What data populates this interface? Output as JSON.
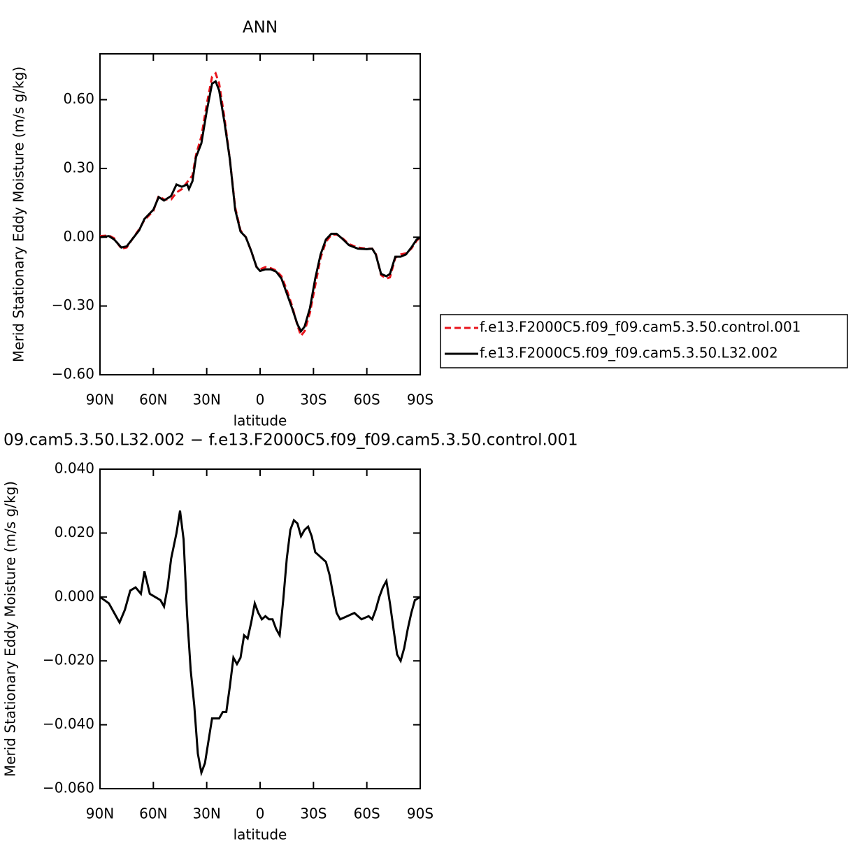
{
  "chart_data": [
    {
      "type": "line",
      "title": "ANN",
      "x_label": "latitude",
      "y_label": "Merid Stationary Eddy Moisture (m/s g/kg)",
      "x": [
        90,
        85,
        82,
        78,
        75,
        72,
        68,
        65,
        60,
        57,
        54,
        50,
        47,
        44,
        41,
        40,
        38,
        36,
        33,
        30,
        27,
        25,
        23,
        20,
        17,
        14,
        11,
        8,
        5,
        2,
        0,
        -3,
        -6,
        -9,
        -12,
        -15,
        -18,
        -21,
        -23,
        -25,
        -28,
        -31,
        -34,
        -37,
        -40,
        -43,
        -46,
        -50,
        -55,
        -60,
        -63,
        -65,
        -68,
        -71,
        -73,
        -76,
        -79,
        -82,
        -85,
        -88,
        -90
      ],
      "series": [
        {
          "name": "f.e13.F2000C5.f09_f09.cam5.3.50.control.001",
          "color": "#e8141c",
          "style": "dashed",
          "values": [
            0.005,
            0.008,
            -0.005,
            -0.05,
            -0.045,
            -0.01,
            0.035,
            0.075,
            0.115,
            0.18,
            0.165,
            0.165,
            0.195,
            0.21,
            0.24,
            0.25,
            0.27,
            0.36,
            0.44,
            0.58,
            0.7,
            0.715,
            0.67,
            0.52,
            0.34,
            0.13,
            0.03,
            0.0,
            -0.06,
            -0.13,
            -0.14,
            -0.13,
            -0.135,
            -0.145,
            -0.17,
            -0.23,
            -0.3,
            -0.385,
            -0.43,
            -0.41,
            -0.33,
            -0.21,
            -0.09,
            -0.02,
            0.01,
            0.012,
            -0.002,
            -0.03,
            -0.045,
            -0.05,
            -0.05,
            -0.07,
            -0.165,
            -0.18,
            -0.175,
            -0.09,
            -0.075,
            -0.07,
            -0.05,
            -0.015,
            0.0
          ]
        },
        {
          "name": "f.e13.F2000C5.f09_f09.cam5.3.50.L32.002",
          "color": "#000000",
          "style": "solid",
          "values": [
            0.0,
            0.005,
            -0.01,
            -0.045,
            -0.04,
            -0.01,
            0.03,
            0.08,
            0.12,
            0.175,
            0.16,
            0.18,
            0.23,
            0.22,
            0.23,
            0.21,
            0.245,
            0.35,
            0.41,
            0.55,
            0.67,
            0.68,
            0.64,
            0.5,
            0.34,
            0.12,
            0.025,
            0.0,
            -0.06,
            -0.13,
            -0.147,
            -0.14,
            -0.14,
            -0.15,
            -0.18,
            -0.245,
            -0.31,
            -0.38,
            -0.41,
            -0.39,
            -0.31,
            -0.18,
            -0.075,
            -0.01,
            0.015,
            0.015,
            -0.005,
            -0.035,
            -0.05,
            -0.052,
            -0.05,
            -0.075,
            -0.16,
            -0.17,
            -0.16,
            -0.085,
            -0.085,
            -0.075,
            -0.045,
            -0.01,
            0.0
          ]
        }
      ],
      "xlim": [
        90,
        -90
      ],
      "ylim": [
        -0.6,
        0.8
      ],
      "xticks": [
        {
          "value": 90,
          "label": "90N"
        },
        {
          "value": 60,
          "label": "60N"
        },
        {
          "value": 30,
          "label": "30N"
        },
        0,
        {
          "value": -30,
          "label": "30S"
        },
        {
          "value": -60,
          "label": "60S"
        },
        {
          "value": -90,
          "label": "90S"
        }
      ],
      "yticks": [
        {
          "value": -0.6,
          "label": "−0.60"
        },
        {
          "value": -0.3,
          "label": "−0.30"
        },
        {
          "value": 0,
          "label": "0.00"
        },
        {
          "value": 0.3,
          "label": "0.30"
        },
        {
          "value": 0.6,
          "label": "0.60"
        }
      ],
      "grid": false,
      "legend": "right"
    },
    {
      "type": "line",
      "title": "09.cam5.3.50.L32.002 − f.e13.F2000C5.f09_f09.cam5.3.50.control.001",
      "x_label": "latitude",
      "y_label": "Merid Stationary Eddy Moisture (m/s g/kg)",
      "x": [
        90,
        85,
        82,
        79,
        76,
        73,
        70,
        67,
        65,
        62,
        59,
        56,
        54,
        52,
        50,
        47,
        45,
        43,
        41,
        39,
        37,
        35,
        33,
        31,
        29,
        27,
        25,
        23,
        21,
        19,
        17,
        15,
        13,
        11,
        9,
        7,
        5,
        3,
        1,
        -1,
        -3,
        -5,
        -7,
        -9,
        -11,
        -13,
        -15,
        -17,
        -19,
        -21,
        -23,
        -25,
        -27,
        -29,
        -31,
        -33,
        -35,
        -37,
        -39,
        -41,
        -43,
        -45,
        -49,
        -53,
        -57,
        -61,
        -63,
        -65,
        -67,
        -69,
        -71,
        -73,
        -75,
        -77,
        -79,
        -81,
        -83,
        -85,
        -87,
        -90
      ],
      "series": [
        {
          "color": "#000000",
          "style": "solid",
          "values": [
            0,
            -0.002,
            -0.005,
            -0.008,
            -0.004,
            0.002,
            0.003,
            0.001,
            0.008,
            0.001,
            0.0,
            -0.001,
            -0.003,
            0.003,
            0.012,
            0.02,
            0.027,
            0.018,
            -0.006,
            -0.023,
            -0.034,
            -0.049,
            -0.055,
            -0.052,
            -0.045,
            -0.038,
            -0.038,
            -0.038,
            -0.036,
            -0.036,
            -0.028,
            -0.019,
            -0.021,
            -0.019,
            -0.012,
            -0.013,
            -0.008,
            -0.002,
            -0.005,
            -0.007,
            -0.006,
            -0.007,
            -0.007,
            -0.01,
            -0.012,
            -0.001,
            0.012,
            0.021,
            0.024,
            0.023,
            0.019,
            0.021,
            0.022,
            0.019,
            0.014,
            0.013,
            0.012,
            0.011,
            0.007,
            0.001,
            -0.005,
            -0.007,
            -0.006,
            -0.005,
            -0.007,
            -0.006,
            -0.007,
            -0.004,
            0.0,
            0.003,
            0.005,
            -0.002,
            -0.01,
            -0.018,
            -0.02,
            -0.016,
            -0.01,
            -0.005,
            -0.001,
            0
          ]
        }
      ],
      "xlim": [
        90,
        -90
      ],
      "ylim": [
        -0.06,
        0.04
      ],
      "xticks": [
        {
          "value": 90,
          "label": "90N"
        },
        {
          "value": 60,
          "label": "60N"
        },
        {
          "value": 30,
          "label": "30N"
        },
        0,
        {
          "value": -30,
          "label": "30S"
        },
        {
          "value": -60,
          "label": "60S"
        },
        {
          "value": -90,
          "label": "90S"
        }
      ],
      "yticks": [
        {
          "value": -0.06,
          "label": "−0.060"
        },
        {
          "value": -0.04,
          "label": "−0.040"
        },
        {
          "value": -0.02,
          "label": "−0.020"
        },
        {
          "value": 0,
          "label": "0.000"
        },
        {
          "value": 0.02,
          "label": "0.020"
        },
        {
          "value": 0.04,
          "label": "0.040"
        }
      ],
      "grid": false
    }
  ]
}
